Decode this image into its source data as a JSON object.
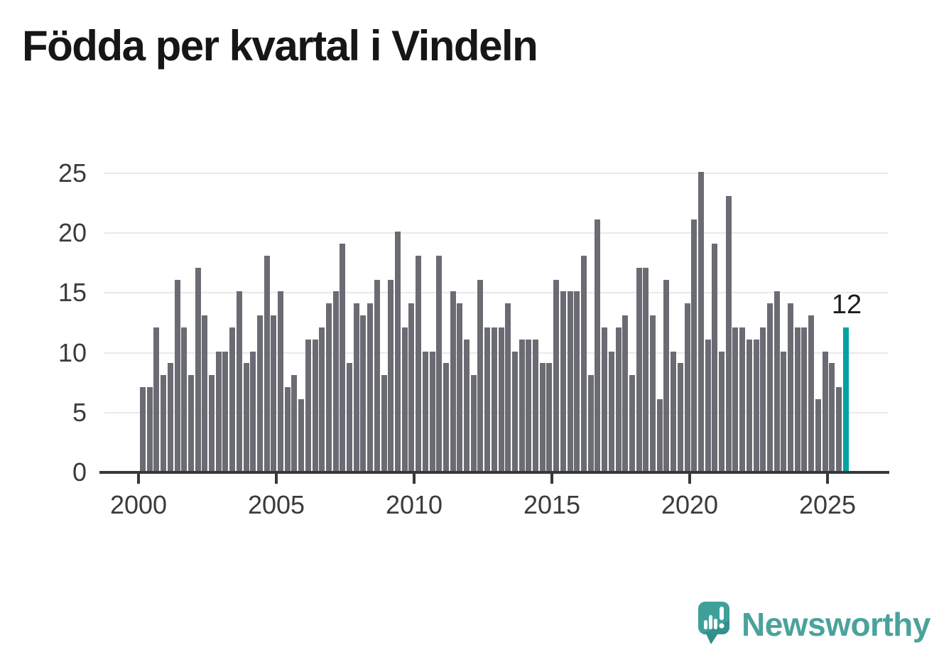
{
  "title": "Födda per kvartal i Vindeln",
  "annotation": {
    "label": "12"
  },
  "branding": {
    "name": "Newsworthy",
    "icon": "speech-bubble-with-bar-chart-and-exclamation"
  },
  "colors": {
    "title": "#161618",
    "text": "#3b3b3d",
    "axis": "#38383a",
    "gridline": "#e9e9ea",
    "bar": "#6b6b74",
    "highlight": "#00a2a4",
    "annotation": "#1c1c1c",
    "brand_text": "#4aa29b",
    "logo_fill": "#3fa09a",
    "logo_shade": "#2f8e88"
  },
  "chart_data": {
    "type": "bar",
    "title": "Födda per kvartal i Vindeln",
    "frequency": "quarterly",
    "x_start": "2000 Q1",
    "x_end": "2025 Q3",
    "x_tick_labels": [
      "2000",
      "2005",
      "2010",
      "2015",
      "2020",
      "2025"
    ],
    "y_ticks": [
      0,
      5,
      10,
      15,
      20,
      25
    ],
    "ylim": [
      0,
      25
    ],
    "grid": true,
    "legend": false,
    "highlight_last": true,
    "highlight_value_label": "12",
    "values": [
      7,
      7,
      12,
      8,
      9,
      16,
      12,
      8,
      17,
      13,
      8,
      10,
      10,
      12,
      15,
      9,
      10,
      13,
      18,
      13,
      15,
      7,
      8,
      6,
      11,
      11,
      12,
      14,
      15,
      19,
      9,
      14,
      13,
      14,
      16,
      8,
      16,
      20,
      12,
      14,
      18,
      10,
      10,
      18,
      9,
      15,
      14,
      11,
      8,
      16,
      12,
      12,
      12,
      14,
      10,
      11,
      11,
      11,
      9,
      9,
      16,
      15,
      15,
      15,
      18,
      8,
      21,
      12,
      10,
      12,
      13,
      8,
      17,
      17,
      13,
      6,
      16,
      10,
      9,
      14,
      21,
      25,
      11,
      19,
      10,
      23,
      12,
      12,
      11,
      11,
      12,
      14,
      15,
      10,
      14,
      12,
      12,
      13,
      6,
      10,
      9,
      7,
      12
    ]
  }
}
